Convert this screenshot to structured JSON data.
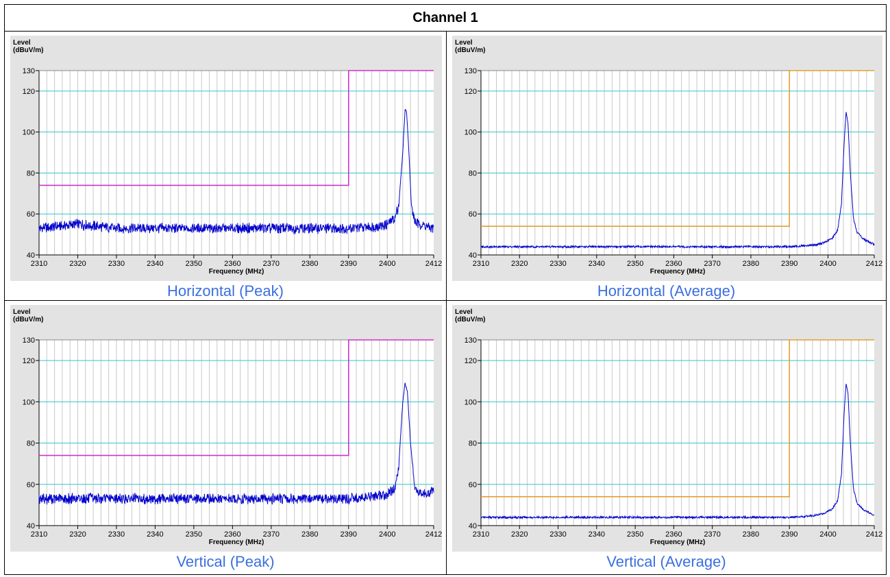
{
  "page": {
    "title": "Channel 1"
  },
  "chart_data": [
    {
      "type": "line",
      "caption": "Horizontal (Peak)",
      "ylabel": [
        "Level",
        "(dBuV/m)"
      ],
      "xlabel": "Frequency (MHz)",
      "xlim": [
        2310,
        2412
      ],
      "ylim": [
        40,
        130
      ],
      "xticks": [
        2310,
        2320,
        2330,
        2340,
        2350,
        2360,
        2370,
        2380,
        2390,
        2400,
        2412
      ],
      "yticks": [
        40,
        60,
        80,
        100,
        120,
        130
      ],
      "grid": true,
      "limit_color": "#cc33cc",
      "trace_color": "#0000cc",
      "series": [
        {
          "role": "limit",
          "x": [
            2310,
            2390,
            2390,
            2412
          ],
          "y": [
            74,
            74,
            130,
            130
          ]
        },
        {
          "role": "trace",
          "x": [
            2310,
            2320,
            2330,
            2340,
            2350,
            2360,
            2370,
            2380,
            2390,
            2395,
            2398,
            2400,
            2402,
            2403,
            2404,
            2404.6,
            2405,
            2405.6,
            2406.2,
            2407,
            2408,
            2410,
            2412
          ],
          "y": [
            53,
            55,
            53,
            53,
            53,
            53,
            53,
            53,
            53,
            53.5,
            54,
            55,
            58,
            65,
            90,
            111,
            110,
            90,
            65,
            57,
            55,
            54,
            53
          ]
        }
      ]
    },
    {
      "type": "line",
      "caption": "Horizontal (Average)",
      "ylabel": [
        "Level",
        "(dBuV/m)"
      ],
      "xlabel": "Frequency (MHz)",
      "xlim": [
        2310,
        2412
      ],
      "ylim": [
        40,
        130
      ],
      "xticks": [
        2310,
        2320,
        2330,
        2340,
        2350,
        2360,
        2370,
        2380,
        2390,
        2400,
        2412
      ],
      "yticks": [
        40,
        60,
        80,
        100,
        120,
        130
      ],
      "grid": true,
      "limit_color": "#e3a030",
      "trace_color": "#0000cc",
      "series": [
        {
          "role": "limit",
          "x": [
            2310,
            2390,
            2390,
            2412
          ],
          "y": [
            54,
            54,
            130,
            130
          ]
        },
        {
          "role": "trace",
          "x": [
            2310,
            2330,
            2350,
            2370,
            2390,
            2394,
            2397,
            2399,
            2401,
            2402.5,
            2403.5,
            2404.2,
            2404.7,
            2405.2,
            2405.8,
            2406.6,
            2407.5,
            2409,
            2411,
            2412
          ],
          "y": [
            44,
            44,
            44,
            44,
            44,
            44.5,
            45,
            46,
            48,
            52,
            65,
            95,
            110,
            104,
            80,
            58,
            51,
            48,
            46,
            45
          ]
        }
      ]
    },
    {
      "type": "line",
      "caption": "Vertical (Peak)",
      "ylabel": [
        "Level",
        "(dBuV/m)"
      ],
      "xlabel": "Frequency (MHz)",
      "xlim": [
        2310,
        2412
      ],
      "ylim": [
        40,
        130
      ],
      "xticks": [
        2310,
        2320,
        2330,
        2340,
        2350,
        2360,
        2370,
        2380,
        2390,
        2400,
        2412
      ],
      "yticks": [
        40,
        60,
        80,
        100,
        120,
        130
      ],
      "grid": true,
      "limit_color": "#cc33cc",
      "trace_color": "#0000cc",
      "series": [
        {
          "role": "limit",
          "x": [
            2310,
            2390,
            2390,
            2412
          ],
          "y": [
            74,
            74,
            130,
            130
          ]
        },
        {
          "role": "trace",
          "x": [
            2310,
            2320,
            2330,
            2340,
            2350,
            2360,
            2370,
            2380,
            2390,
            2396,
            2400,
            2402,
            2403,
            2404,
            2404.6,
            2405.2,
            2406,
            2407,
            2408,
            2410,
            2412
          ],
          "y": [
            53,
            53,
            53,
            53,
            53,
            53,
            53,
            53,
            53,
            54,
            55,
            58,
            70,
            100,
            109,
            105,
            80,
            60,
            56,
            55,
            57
          ]
        }
      ]
    },
    {
      "type": "line",
      "caption": "Vertical (Average)",
      "ylabel": [
        "Level",
        "(dBuV/m)"
      ],
      "xlabel": "Frequency (MHz)",
      "xlim": [
        2310,
        2412
      ],
      "ylim": [
        40,
        130
      ],
      "xticks": [
        2310,
        2320,
        2330,
        2340,
        2350,
        2360,
        2370,
        2380,
        2390,
        2400,
        2412
      ],
      "yticks": [
        40,
        60,
        80,
        100,
        120,
        130
      ],
      "grid": true,
      "limit_color": "#e3a030",
      "trace_color": "#0000cc",
      "series": [
        {
          "role": "limit",
          "x": [
            2310,
            2390,
            2390,
            2412
          ],
          "y": [
            54,
            54,
            130,
            130
          ]
        },
        {
          "role": "trace",
          "x": [
            2310,
            2330,
            2350,
            2370,
            2390,
            2394,
            2397,
            2399,
            2401,
            2402.5,
            2403.5,
            2404.2,
            2404.7,
            2405.2,
            2405.8,
            2406.6,
            2407.5,
            2409,
            2411,
            2412
          ],
          "y": [
            44,
            44,
            44,
            44,
            44,
            44.5,
            45,
            46,
            48,
            52,
            65,
            95,
            109,
            104,
            80,
            58,
            51,
            48,
            46,
            45
          ]
        }
      ]
    }
  ]
}
